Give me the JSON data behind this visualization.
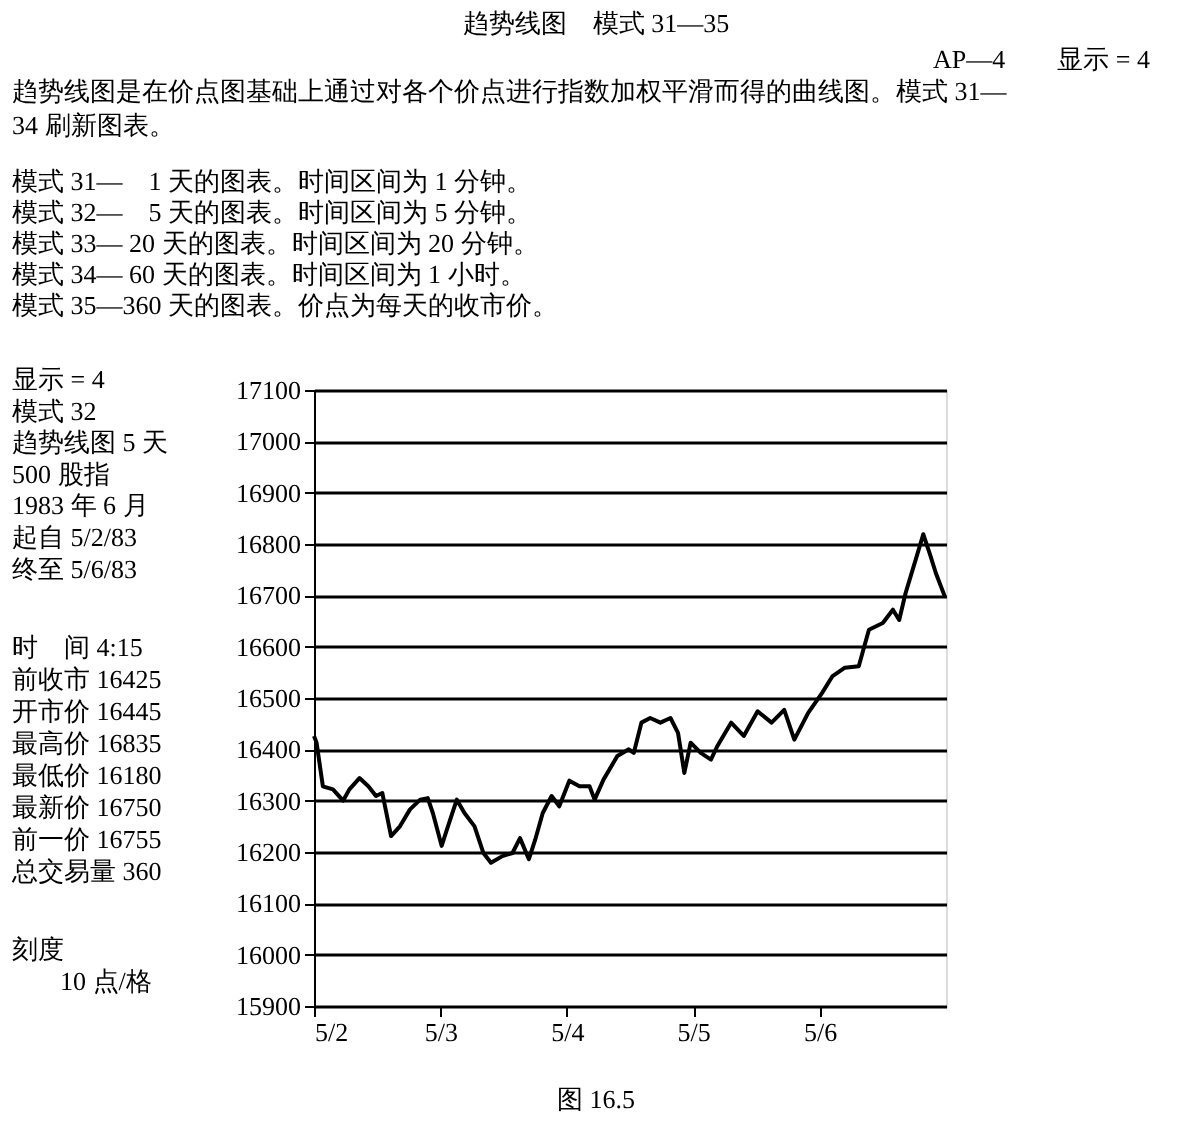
{
  "chart_data": {
    "type": "line",
    "title": "趋势线图　模式 31—35",
    "annotations": [
      "AP—4　　显示 = 4",
      "趋势线图是在价点图基础上通过对各个价点进行指数加权平滑而得的曲线图。模式 31—",
      "34 刷新图表。",
      "模式 31—　1 天的图表。时间区间为 1 分钟。",
      "模式 32—　5 天的图表。时间区间为 5 分钟。",
      "模式 33— 20 天的图表。时间区间为 20 分钟。",
      "模式 34— 60 天的图表。时间区间为 1 小时。",
      "模式 35—360 天的图表。价点为每天的收市价。",
      "显示 = 4",
      "模式 32",
      "趋势线图 5 天",
      "500 股指",
      "1983 年 6 月",
      "起自 5/2/83",
      "终至 5/6/83",
      "时　间 4:15",
      "前收市 16425",
      "开市价 16445",
      "最高价 16835",
      "最低价 16180",
      "最新价 16750",
      "前一价 16755",
      "总交易量 360",
      "刻度",
      "10 点/格",
      "图 16.5"
    ],
    "x": [
      "1983-05-02T00:00",
      "1983-05-02T00:29",
      "1983-05-02T01:41",
      "1983-05-02T03:36",
      "1983-05-02T05:31",
      "1983-05-02T06:43",
      "1983-05-02T08:38",
      "1983-05-02T10:19",
      "1983-05-02T11:46",
      "1983-05-02T12:58",
      "1983-05-02T14:38",
      "1983-05-02T16:19",
      "1983-05-02T18:14",
      "1983-05-02T20:10",
      "1983-05-02T21:36",
      "1983-05-02T22:34",
      "1983-05-03T00:14",
      "1983-05-03T01:26",
      "1983-05-03T03:07",
      "1983-05-03T04:34",
      "1983-05-03T06:29",
      "1983-05-03T08:10",
      "1983-05-03T09:36",
      "1983-05-03T11:46",
      "1983-05-03T13:41",
      "1983-05-03T15:07",
      "1983-05-03T16:48",
      "1983-05-03T18:00",
      "1983-05-03T19:26",
      "1983-05-03T21:07",
      "1983-05-03T22:34",
      "1983-05-04T00:29",
      "1983-05-04T02:24",
      "1983-05-04T04:19",
      "1983-05-04T05:17",
      "1983-05-04T06:58",
      "1983-05-04T09:36",
      "1983-05-04T11:46",
      "1983-05-04T12:43",
      "1983-05-04T14:10",
      "1983-05-04T15:50",
      "1983-05-04T17:46",
      "1983-05-04T19:41",
      "1983-05-04T21:07",
      "1983-05-04T22:19",
      "1983-05-04T23:31",
      "1983-05-05T01:26",
      "1983-05-05T03:22",
      "1983-05-05T04:34",
      "1983-05-05T07:12",
      "1983-05-05T09:36",
      "1983-05-05T12:14",
      "1983-05-05T14:53",
      "1983-05-05T17:17",
      "1983-05-05T19:12",
      "1983-05-05T21:50",
      "1983-05-06T00:29",
      "1983-05-06T02:24",
      "1983-05-06T04:48",
      "1983-05-06T07:26",
      "1983-05-06T09:22",
      "1983-05-06T12:00",
      "1983-05-06T13:55",
      "1983-05-06T15:07",
      "1983-05-06T16:19",
      "1983-05-06T18:14",
      "1983-05-06T19:41",
      "1983-05-06T20:53",
      "1983-05-06T22:05",
      "1983-05-06T23:46"
    ],
    "series": [
      {
        "color": "#000000",
        "values": [
          16426,
          16413,
          16328,
          16322,
          16300,
          16322,
          16344,
          16328,
          16309,
          16315,
          16231,
          16250,
          16283,
          16302,
          16305,
          16276,
          16212,
          16250,
          16302,
          16276,
          16250,
          16198,
          16179,
          16192,
          16198,
          16227,
          16186,
          16224,
          16276,
          16309,
          16289,
          16339,
          16328,
          16328,
          16302,
          16341,
          16387,
          16400,
          16393,
          16452,
          16461,
          16452,
          16461,
          16432,
          16354,
          16413,
          16393,
          16380,
          16406,
          16452,
          16426,
          16474,
          16452,
          16477,
          16419,
          16471,
          16510,
          16542,
          16559,
          16562,
          16633,
          16646,
          16672,
          16652,
          16704,
          16769,
          16819,
          16782,
          16743,
          16698
        ]
      }
    ],
    "xlim": [
      "1983-05-02",
      "1983-05-07"
    ],
    "xticks": [
      {
        "value": "1983-05-02",
        "label": "5/2"
      },
      {
        "value": "1983-05-03",
        "label": "5/3"
      },
      {
        "value": "1983-05-04",
        "label": "5/4"
      },
      {
        "value": "1983-05-05",
        "label": "5/5"
      },
      {
        "value": "1983-05-06",
        "label": "5/6"
      }
    ],
    "ylim": [
      15900,
      17100
    ],
    "yticks": [
      15900,
      16000,
      16100,
      16200,
      16300,
      16400,
      16500,
      16600,
      16700,
      16800,
      16900,
      17000,
      17100
    ],
    "grid": "y",
    "marker": "none",
    "line_style": "solid",
    "legend": false
  }
}
